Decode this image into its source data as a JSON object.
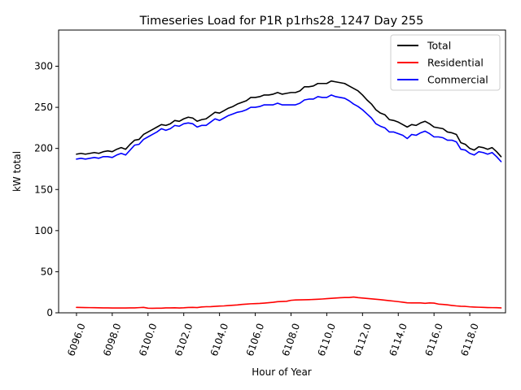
{
  "chart_data": {
    "type": "line",
    "title": "Timeseries Load for P1R p1rhs28_1247  Day 255",
    "xlabel": "Hour of Year",
    "ylabel": "kW total",
    "xlim": [
      6095.0,
      6120.0
    ],
    "ylim": [
      0,
      344
    ],
    "grid": false,
    "legend_position": "top-right",
    "xticks": [
      6096,
      6098,
      6100,
      6102,
      6104,
      6106,
      6108,
      6110,
      6112,
      6114,
      6116,
      6118
    ],
    "xtick_labels": [
      "6096.0",
      "6098.0",
      "6100.0",
      "6102.0",
      "6104.0",
      "6106.0",
      "6108.0",
      "6110.0",
      "6112.0",
      "6114.0",
      "6116.0",
      "6118.0"
    ],
    "yticks": [
      0,
      50,
      100,
      150,
      200,
      250,
      300
    ],
    "ytick_labels": [
      "0",
      "50",
      "100",
      "150",
      "200",
      "250",
      "300"
    ],
    "x_start": 6096.0,
    "x_step": 0.25,
    "series": [
      {
        "name": "Total",
        "color": "#000000",
        "values": [
          193,
          194,
          193,
          194,
          195,
          194,
          196,
          197,
          196,
          199,
          201,
          199,
          205,
          210,
          211,
          217,
          220,
          223,
          226,
          229,
          228,
          230,
          234,
          233,
          236,
          238,
          237,
          233,
          235,
          236,
          240,
          244,
          243,
          246,
          249,
          251,
          254,
          256,
          258,
          262,
          262,
          263,
          265,
          265,
          266,
          268,
          266,
          267,
          268,
          268,
          270,
          275,
          275,
          276,
          279,
          279,
          279,
          282,
          281,
          280,
          279,
          276,
          273,
          270,
          265,
          259,
          254,
          247,
          243,
          241,
          235,
          234,
          232,
          229,
          226,
          229,
          228,
          231,
          233,
          230,
          226,
          225,
          224,
          220,
          219,
          217,
          207,
          205,
          200,
          198,
          202,
          201,
          199,
          201,
          196,
          190
        ]
      },
      {
        "name": "Residential",
        "color": "#ff0000",
        "values": [
          6.6,
          6.5,
          6.4,
          6.3,
          6.2,
          6.1,
          6.0,
          6.0,
          5.9,
          5.9,
          5.9,
          5.9,
          6.0,
          6.0,
          6.3,
          6.6,
          5.6,
          5.5,
          5.6,
          5.6,
          6.0,
          6.0,
          6.1,
          5.9,
          6.1,
          6.5,
          6.6,
          6.4,
          7.1,
          7.4,
          7.5,
          7.8,
          8.2,
          8.4,
          8.8,
          9.2,
          9.6,
          10.2,
          10.6,
          11.0,
          11.2,
          11.4,
          11.8,
          12.3,
          12.8,
          13.5,
          13.8,
          14.0,
          15.2,
          15.6,
          15.8,
          15.9,
          16.0,
          16.2,
          16.5,
          16.8,
          17.2,
          17.6,
          18.0,
          18.4,
          18.6,
          18.6,
          19.2,
          18.5,
          18.0,
          17.5,
          17.0,
          16.5,
          16.0,
          15.4,
          14.8,
          14.2,
          13.6,
          12.9,
          12.2,
          12.0,
          12.1,
          12.0,
          11.6,
          12.0,
          11.8,
          10.6,
          10.2,
          9.7,
          9.0,
          8.4,
          8.0,
          7.8,
          7.3,
          7.0,
          6.8,
          6.6,
          6.4,
          6.3,
          6.2,
          6.0
        ]
      },
      {
        "name": "Commercial",
        "color": "#0000ff",
        "values": [
          187,
          188,
          187,
          188,
          189,
          188,
          190,
          190,
          189,
          192,
          194,
          192,
          198,
          204,
          205,
          211,
          214,
          217,
          220,
          224,
          222,
          224,
          228,
          227,
          230,
          231,
          230,
          226,
          228,
          228,
          232,
          236,
          234,
          237,
          240,
          242,
          244,
          245,
          247,
          250,
          250,
          251,
          253,
          253,
          253,
          255,
          253,
          253,
          253,
          253,
          255,
          259,
          260,
          260,
          263,
          262,
          262,
          265,
          263,
          262,
          261,
          258,
          254,
          251,
          247,
          242,
          237,
          230,
          227,
          225,
          220,
          220,
          218,
          216,
          212,
          217,
          216,
          219,
          221,
          218,
          214,
          214,
          213,
          210,
          210,
          208,
          199,
          198,
          194,
          192,
          196,
          195,
          193,
          195,
          190,
          184
        ]
      }
    ]
  }
}
